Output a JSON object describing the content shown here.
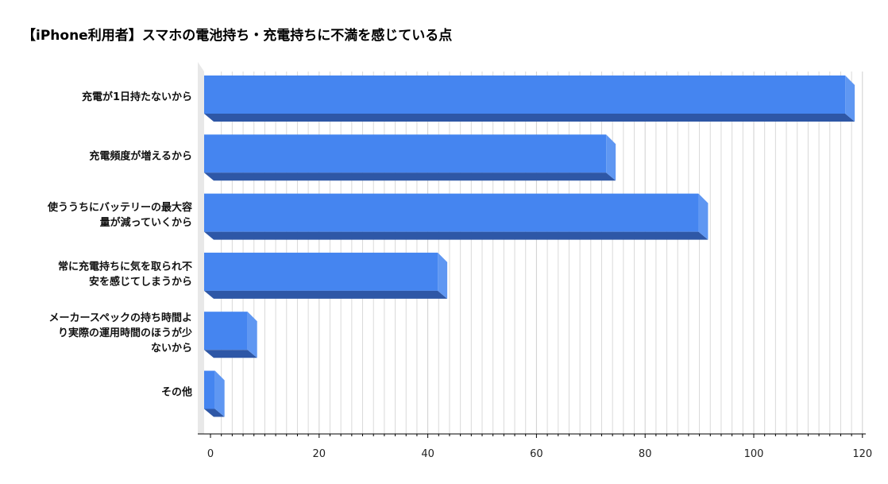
{
  "chart_data": {
    "type": "bar",
    "orientation": "horizontal",
    "title": "【iPhone利用者】スマホの電池持ち・充電持ちに不満を感じている点",
    "categories": [
      [
        "充電が1日持たないから"
      ],
      [
        "充電頻度が増えるから"
      ],
      [
        "使ううちにバッテリーの最大容",
        "量が減っていくから"
      ],
      [
        "常に充電持ちに気を取られ不",
        "安を感じてしまうから"
      ],
      [
        "メーカースペックの持ち時間よ",
        "り実際の運用時間のほうが少",
        "ないから"
      ],
      [
        "その他"
      ]
    ],
    "values": [
      118,
      74,
      91,
      43,
      8,
      2
    ],
    "xlim": [
      0,
      120
    ],
    "xticks": [
      0,
      20,
      40,
      60,
      80,
      100,
      120
    ],
    "grid": true,
    "colors": {
      "bar_front": "#4585f0",
      "bar_side": "#5f97f2",
      "bar_bottom": "#2e57a6",
      "grid": "#d9d9d9",
      "wall": "#e8e8e8"
    }
  }
}
